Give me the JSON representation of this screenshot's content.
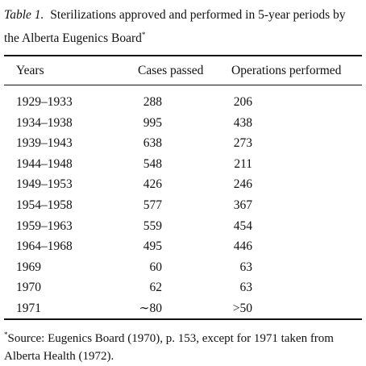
{
  "caption": {
    "label": "Table 1.",
    "text": "Sterilizations approved and performed in 5-year periods by the Alberta Eugenics Board",
    "marker": "*"
  },
  "table": {
    "header": [
      "Years",
      "Cases passed",
      "Operations performed"
    ],
    "rows": [
      [
        "1929–1933",
        "288",
        "206"
      ],
      [
        "1934–1938",
        "995",
        "438"
      ],
      [
        "1939–1943",
        "638",
        "273"
      ],
      [
        "1944–1948",
        "548",
        "211"
      ],
      [
        "1949–1953",
        "426",
        "246"
      ],
      [
        "1954–1958",
        "577",
        "367"
      ],
      [
        "1959–1963",
        "559",
        "454"
      ],
      [
        "1964–1968",
        "495",
        "446"
      ],
      [
        "1969",
        "60",
        "63"
      ],
      [
        "1970",
        "62",
        "63"
      ],
      [
        "1971",
        "∼80",
        ">50"
      ]
    ]
  },
  "footnote": {
    "marker": "*",
    "text": "Source: Eugenics Board (1970), p. 153, except for 1971 taken from Alberta Health (1972)."
  }
}
